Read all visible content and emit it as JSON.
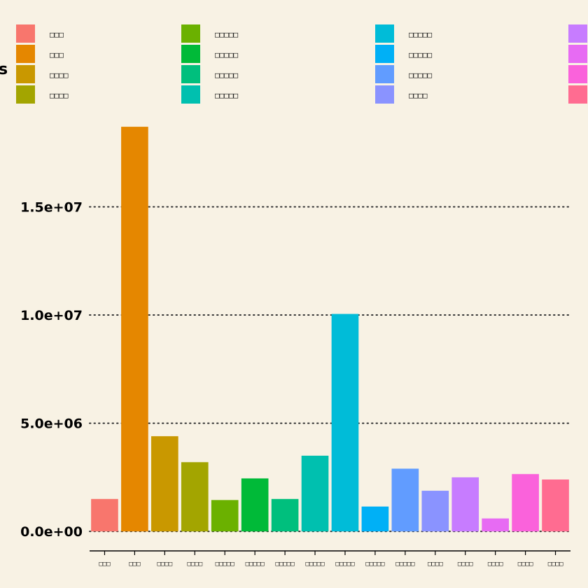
{
  "chart_data": {
    "type": "bar",
    "title": "",
    "xlabel": "",
    "ylabel": "s",
    "ylim": [
      -900000,
      18800000
    ],
    "yticks": [
      0,
      5000000,
      10000000,
      15000000
    ],
    "ytick_labels": [
      "0.0e+00",
      "5.0e+06",
      "1.0e+07",
      "1.5e+07"
    ],
    "grid": "horizontal-dotted",
    "legend_position": "top",
    "categories": [
      "□□□",
      "□□□",
      "□□□□",
      "□□□□",
      "□□□□□",
      "□□□□□",
      "□□□□□",
      "□□□□□",
      "□□□□□",
      "□□□□□",
      "□□□□□",
      "□□□□",
      "□□□□",
      "□□□□",
      "□□□□",
      "□□□□"
    ],
    "values": [
      1500000,
      18700000,
      4400000,
      3200000,
      1450000,
      2450000,
      1500000,
      3500000,
      10050000,
      1150000,
      2900000,
      1880000,
      2500000,
      600000,
      2650000,
      2400000
    ],
    "colors": [
      "#F8766D",
      "#E58700",
      "#C99800",
      "#A3A500",
      "#6BB100",
      "#00BA38",
      "#00BF7D",
      "#00C0AF",
      "#00BCD8",
      "#00B0F6",
      "#619CFF",
      "#8A93FF",
      "#C77CFF",
      "#E76BF3",
      "#FA62DB",
      "#FF6C91"
    ],
    "legend": [
      {
        "label": "□□□",
        "color": "#F8766D"
      },
      {
        "label": "□□□",
        "color": "#E58700"
      },
      {
        "label": "□□□□",
        "color": "#C99800"
      },
      {
        "label": "□□□□",
        "color": "#A3A500"
      },
      {
        "label": "□□□□□",
        "color": "#6BB100"
      },
      {
        "label": "□□□□□",
        "color": "#00BA38"
      },
      {
        "label": "□□□□□",
        "color": "#00BF7D"
      },
      {
        "label": "□□□□□",
        "color": "#00C0AF"
      },
      {
        "label": "□□□□□",
        "color": "#00BCD8"
      },
      {
        "label": "□□□□□",
        "color": "#00B0F6"
      },
      {
        "label": "□□□□□",
        "color": "#619CFF"
      },
      {
        "label": "□□□□",
        "color": "#8A93FF"
      },
      {
        "label": "",
        "color": "#C77CFF"
      },
      {
        "label": "",
        "color": "#E76BF3"
      },
      {
        "label": "",
        "color": "#FA62DB"
      },
      {
        "label": "",
        "color": "#FF6C91"
      }
    ]
  }
}
